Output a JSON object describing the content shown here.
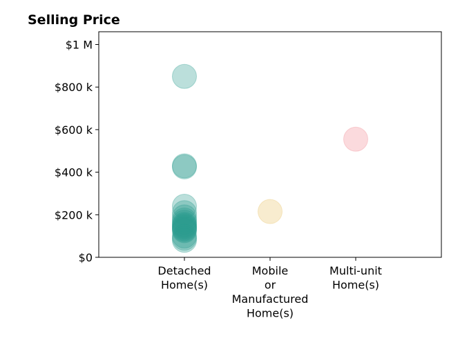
{
  "chart_data": {
    "type": "scatter",
    "title": "Selling Price",
    "xlabel": "",
    "ylabel": "",
    "categories": [
      [
        "Detached",
        "Home(s)"
      ],
      [
        "Mobile",
        "or",
        "Manufactured",
        "Home(s)"
      ],
      [
        "Multi-unit",
        "Home(s)"
      ]
    ],
    "ylim": [
      0,
      1060000
    ],
    "yticks": [
      {
        "value": 0,
        "label": "$0"
      },
      {
        "value": 200000,
        "label": "$200 k"
      },
      {
        "value": 400000,
        "label": "$400 k"
      },
      {
        "value": 600000,
        "label": "$600 k"
      },
      {
        "value": 800000,
        "label": "$800 k"
      },
      {
        "value": 1000000,
        "label": "$1 M"
      }
    ],
    "grid": false,
    "series": [
      {
        "category": 0,
        "color": "#2a9d8f",
        "values": [
          850000,
          430000,
          425000,
          240000,
          210000,
          190000,
          175000,
          165000,
          155000,
          150000,
          145000,
          140000,
          135000,
          130000,
          125000,
          100000,
          90000,
          80000
        ]
      },
      {
        "category": 1,
        "color": "#e9c46a",
        "values": [
          215000
        ]
      },
      {
        "category": 2,
        "color": "#f28b95",
        "values": [
          555000
        ]
      }
    ]
  }
}
